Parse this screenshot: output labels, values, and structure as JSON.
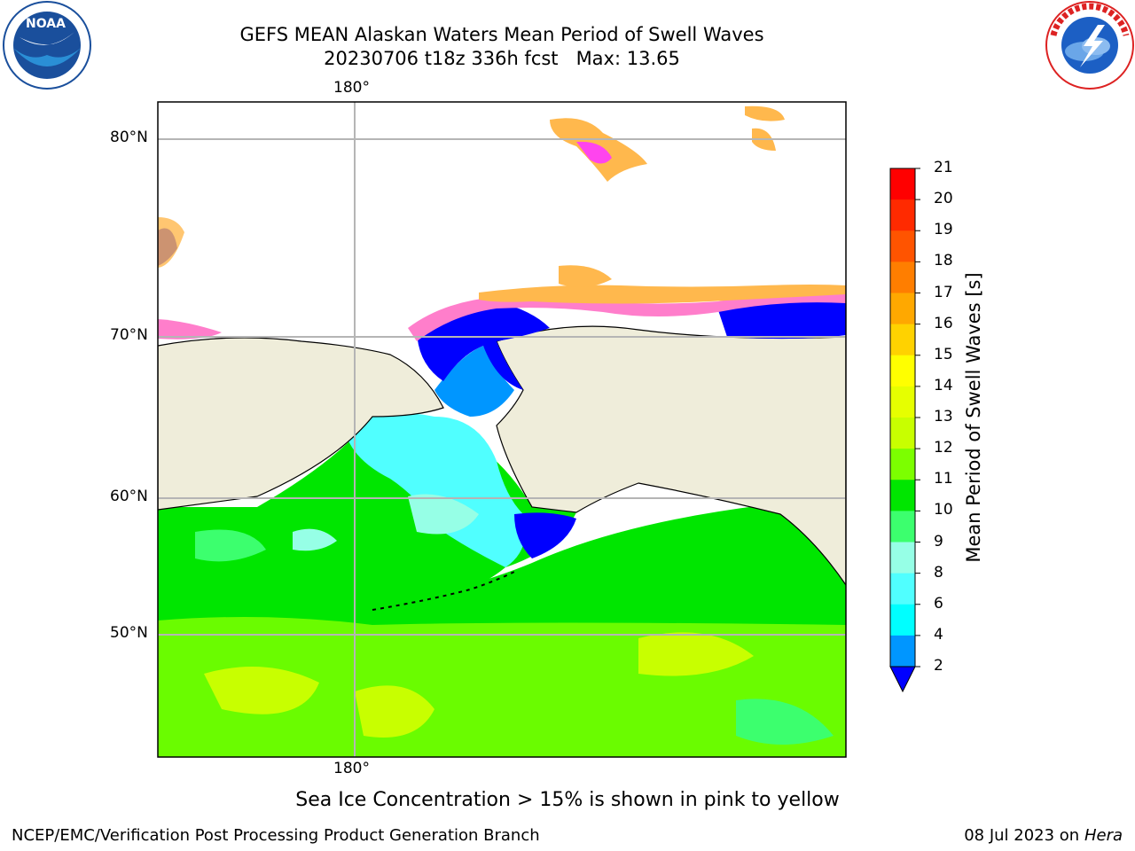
{
  "header": {
    "title_line1": "GEFS MEAN Alaskan Waters Mean Period of Swell Waves",
    "title_line2": "20230706 t18z 336h fcst   Max: 13.65"
  },
  "map": {
    "top_lon_label": "180°",
    "bottom_lon_label": "180°",
    "lat_labels": [
      "80°N",
      "70°N",
      "60°N",
      "50°N"
    ]
  },
  "colorbar": {
    "title": "Mean Period of Swell Waves [s]",
    "ticks": [
      "21",
      "20",
      "19",
      "18",
      "17",
      "16",
      "15",
      "14",
      "13",
      "12",
      "11",
      "10",
      "9",
      "8",
      "6",
      "4",
      "2"
    ],
    "colors": [
      "#ff0000",
      "#ff2a00",
      "#ff5400",
      "#ff7e00",
      "#ffa800",
      "#ffd200",
      "#ffff00",
      "#e6ff00",
      "#c8ff00",
      "#7cff00",
      "#00e600",
      "#3cff6e",
      "#96ffe6",
      "#50ffff",
      "#00ffff",
      "#0096ff",
      "#0000ff"
    ]
  },
  "note": "Sea Ice Concentration > 15% is shown in pink to yellow",
  "footer": {
    "left": "NCEP/EMC/Verification Post Processing Product Generation Branch",
    "right_date": "08 Jul 2023 on",
    "right_host": "Hera"
  },
  "colors": {
    "land": "#efedda",
    "swell_green": "#00e600",
    "swell_light_green": "#7cff00",
    "swell_yellow_green": "#c8ff00",
    "swell_cyan": "#00ffff",
    "swell_blue": "#0000ff",
    "ice_pink": "#ff7ecb",
    "ice_orange": "#ffb84d",
    "grid": "#b5b5b5"
  }
}
